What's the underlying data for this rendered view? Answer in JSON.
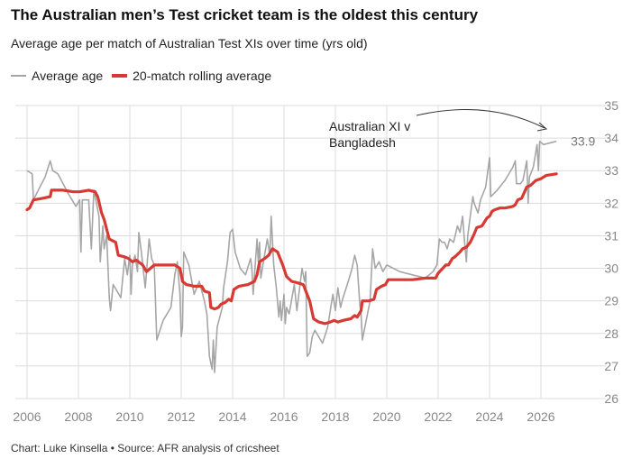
{
  "title": "The Australian men’s Test cricket team is the oldest this century",
  "subtitle": "Average age per match of Australian Test XIs over time (yrs old)",
  "legend": {
    "avg_label": "Average age",
    "roll_label": "20-match rolling average",
    "avg_color": "#a6a6a6",
    "roll_color": "#d63a33"
  },
  "annotation": {
    "text": "Australian XI v Bangladesh",
    "value_label": "33.9"
  },
  "footer": "Chart: Luke Kinsella • Source: AFR analysis of cricsheet",
  "chart_data": {
    "type": "line",
    "xlim": [
      2006,
      2027
    ],
    "ylim": [
      26,
      35
    ],
    "x_ticks": [
      2006,
      2008,
      2010,
      2012,
      2014,
      2016,
      2018,
      2020,
      2022,
      2024,
      2026
    ],
    "y_ticks": [
      26,
      27,
      28,
      29,
      30,
      31,
      32,
      33,
      34,
      35
    ],
    "grid": true,
    "legend_position": "top-left",
    "series": [
      {
        "name": "Average age",
        "points": [
          [
            2006.0,
            33.0
          ],
          [
            2006.2,
            32.9
          ],
          [
            2006.25,
            32.1
          ],
          [
            2006.5,
            32.5
          ],
          [
            2006.7,
            32.8
          ],
          [
            2006.9,
            33.3
          ],
          [
            2007.0,
            33.0
          ],
          [
            2007.2,
            32.9
          ],
          [
            2007.6,
            32.3
          ],
          [
            2007.9,
            31.9
          ],
          [
            2008.05,
            32.1
          ],
          [
            2008.1,
            30.5
          ],
          [
            2008.15,
            32.1
          ],
          [
            2008.4,
            32.1
          ],
          [
            2008.5,
            30.6
          ],
          [
            2008.6,
            32.4
          ],
          [
            2008.8,
            31.6
          ],
          [
            2008.85,
            30.2
          ],
          [
            2008.95,
            31.3
          ],
          [
            2009.0,
            30.6
          ],
          [
            2009.1,
            31.0
          ],
          [
            2009.2,
            29.1
          ],
          [
            2009.25,
            28.7
          ],
          [
            2009.35,
            29.5
          ],
          [
            2009.5,
            29.3
          ],
          [
            2009.65,
            29.1
          ],
          [
            2009.8,
            30.3
          ],
          [
            2009.9,
            29.8
          ],
          [
            2010.0,
            30.4
          ],
          [
            2010.05,
            29.2
          ],
          [
            2010.1,
            30.1
          ],
          [
            2010.2,
            30.4
          ],
          [
            2010.3,
            29.9
          ],
          [
            2010.35,
            31.1
          ],
          [
            2010.45,
            30.5
          ],
          [
            2010.6,
            29.4
          ],
          [
            2010.75,
            30.9
          ],
          [
            2010.85,
            30.3
          ],
          [
            2010.95,
            30.1
          ],
          [
            2011.05,
            27.8
          ],
          [
            2011.3,
            28.4
          ],
          [
            2011.6,
            28.8
          ],
          [
            2011.75,
            29.8
          ],
          [
            2011.85,
            30.2
          ],
          [
            2011.95,
            29.2
          ],
          [
            2012.0,
            27.9
          ],
          [
            2012.05,
            28.2
          ],
          [
            2012.1,
            30.5
          ],
          [
            2012.3,
            30.1
          ],
          [
            2012.5,
            29.2
          ],
          [
            2012.7,
            29.6
          ],
          [
            2012.9,
            29.0
          ],
          [
            2013.0,
            28.6
          ],
          [
            2013.1,
            27.3
          ],
          [
            2013.2,
            26.9
          ],
          [
            2013.25,
            27.8
          ],
          [
            2013.3,
            26.8
          ],
          [
            2013.4,
            28.2
          ],
          [
            2013.6,
            28.8
          ],
          [
            2013.65,
            29.4
          ],
          [
            2013.8,
            30.2
          ],
          [
            2013.9,
            31.1
          ],
          [
            2014.0,
            31.2
          ],
          [
            2014.1,
            30.5
          ],
          [
            2014.3,
            30.0
          ],
          [
            2014.5,
            29.8
          ],
          [
            2014.7,
            30.3
          ],
          [
            2014.75,
            30.0
          ],
          [
            2014.8,
            29.2
          ],
          [
            2014.95,
            30.9
          ],
          [
            2015.0,
            30.2
          ],
          [
            2015.05,
            30.8
          ],
          [
            2015.1,
            29.7
          ],
          [
            2015.2,
            30.2
          ],
          [
            2015.35,
            30.9
          ],
          [
            2015.45,
            30.4
          ],
          [
            2015.5,
            31.6
          ],
          [
            2015.6,
            30.1
          ],
          [
            2015.7,
            29.4
          ],
          [
            2015.8,
            28.5
          ],
          [
            2015.85,
            29.0
          ],
          [
            2015.9,
            28.4
          ],
          [
            2016.0,
            29.2
          ],
          [
            2016.05,
            28.3
          ],
          [
            2016.1,
            28.8
          ],
          [
            2016.2,
            28.6
          ],
          [
            2016.4,
            29.5
          ],
          [
            2016.5,
            28.7
          ],
          [
            2016.7,
            30.0
          ],
          [
            2016.8,
            29.6
          ],
          [
            2016.85,
            29.9
          ],
          [
            2016.9,
            27.3
          ],
          [
            2017.0,
            27.4
          ],
          [
            2017.1,
            27.9
          ],
          [
            2017.2,
            28.1
          ],
          [
            2017.5,
            27.7
          ],
          [
            2017.7,
            28.2
          ],
          [
            2017.8,
            28.7
          ],
          [
            2017.9,
            29.2
          ],
          [
            2018.0,
            28.7
          ],
          [
            2018.1,
            29.4
          ],
          [
            2018.2,
            28.8
          ],
          [
            2018.3,
            29.1
          ],
          [
            2018.5,
            29.6
          ],
          [
            2018.65,
            30.0
          ],
          [
            2018.75,
            30.4
          ],
          [
            2018.85,
            30.1
          ],
          [
            2018.95,
            28.9
          ],
          [
            2019.0,
            28.6
          ],
          [
            2019.05,
            27.8
          ],
          [
            2019.2,
            28.4
          ],
          [
            2019.35,
            29.0
          ],
          [
            2019.45,
            30.6
          ],
          [
            2019.55,
            30.0
          ],
          [
            2019.7,
            30.2
          ],
          [
            2019.85,
            29.9
          ],
          [
            2020.0,
            30.1
          ],
          [
            2020.5,
            29.9
          ],
          [
            2021.0,
            29.8
          ],
          [
            2021.5,
            29.7
          ],
          [
            2021.8,
            29.9
          ],
          [
            2021.95,
            30.1
          ],
          [
            2022.05,
            30.9
          ],
          [
            2022.15,
            30.8
          ],
          [
            2022.25,
            30.8
          ],
          [
            2022.35,
            30.6
          ],
          [
            2022.45,
            30.9
          ],
          [
            2022.6,
            30.8
          ],
          [
            2022.75,
            31.3
          ],
          [
            2022.85,
            31.1
          ],
          [
            2022.95,
            31.6
          ],
          [
            2023.05,
            30.6
          ],
          [
            2023.1,
            30.2
          ],
          [
            2023.15,
            31.0
          ],
          [
            2023.25,
            31.6
          ],
          [
            2023.35,
            32.2
          ],
          [
            2023.4,
            32.0
          ],
          [
            2023.45,
            31.9
          ],
          [
            2023.55,
            31.7
          ],
          [
            2023.65,
            32.1
          ],
          [
            2023.75,
            32.3
          ],
          [
            2023.85,
            32.5
          ],
          [
            2024.0,
            33.4
          ],
          [
            2024.05,
            32.2
          ],
          [
            2024.3,
            32.4
          ],
          [
            2024.6,
            32.7
          ],
          [
            2024.9,
            33.1
          ],
          [
            2025.0,
            33.3
          ],
          [
            2025.05,
            32.6
          ],
          [
            2025.2,
            32.6
          ],
          [
            2025.3,
            32.7
          ],
          [
            2025.45,
            33.3
          ],
          [
            2025.5,
            32.0
          ],
          [
            2025.55,
            32.8
          ],
          [
            2025.7,
            33.1
          ],
          [
            2025.85,
            33.8
          ],
          [
            2025.9,
            33.0
          ],
          [
            2025.95,
            33.9
          ],
          [
            2026.1,
            33.8
          ],
          [
            2026.6,
            33.9
          ]
        ]
      },
      {
        "name": "20-match rolling average",
        "points": [
          [
            2006.0,
            31.8
          ],
          [
            2006.1,
            31.85
          ],
          [
            2006.25,
            32.1
          ],
          [
            2006.6,
            32.15
          ],
          [
            2006.9,
            32.2
          ],
          [
            2006.95,
            32.4
          ],
          [
            2007.4,
            32.4
          ],
          [
            2007.8,
            32.35
          ],
          [
            2008.05,
            32.35
          ],
          [
            2008.4,
            32.4
          ],
          [
            2008.65,
            32.35
          ],
          [
            2008.75,
            32.2
          ],
          [
            2008.9,
            31.7
          ],
          [
            2009.0,
            31.5
          ],
          [
            2009.1,
            31.2
          ],
          [
            2009.2,
            30.9
          ],
          [
            2009.45,
            30.8
          ],
          [
            2009.55,
            30.4
          ],
          [
            2009.8,
            30.35
          ],
          [
            2009.95,
            30.3
          ],
          [
            2010.1,
            30.2
          ],
          [
            2010.25,
            30.25
          ],
          [
            2010.5,
            30.1
          ],
          [
            2010.65,
            29.9
          ],
          [
            2010.8,
            30.0
          ],
          [
            2010.95,
            30.1
          ],
          [
            2011.5,
            30.1
          ],
          [
            2011.75,
            30.1
          ],
          [
            2011.95,
            30.0
          ],
          [
            2012.05,
            29.6
          ],
          [
            2012.2,
            29.5
          ],
          [
            2012.5,
            29.45
          ],
          [
            2012.8,
            29.45
          ],
          [
            2012.9,
            29.3
          ],
          [
            2013.1,
            29.25
          ],
          [
            2013.15,
            28.8
          ],
          [
            2013.3,
            28.75
          ],
          [
            2013.45,
            28.8
          ],
          [
            2013.55,
            28.9
          ],
          [
            2013.7,
            28.95
          ],
          [
            2013.85,
            29.05
          ],
          [
            2013.95,
            29.0
          ],
          [
            2014.05,
            29.35
          ],
          [
            2014.25,
            29.45
          ],
          [
            2014.6,
            29.5
          ],
          [
            2014.85,
            29.6
          ],
          [
            2014.95,
            29.8
          ],
          [
            2015.05,
            30.2
          ],
          [
            2015.25,
            30.3
          ],
          [
            2015.4,
            30.4
          ],
          [
            2015.55,
            30.6
          ],
          [
            2015.75,
            30.5
          ],
          [
            2015.85,
            30.3
          ],
          [
            2015.95,
            30.1
          ],
          [
            2016.1,
            29.75
          ],
          [
            2016.3,
            29.6
          ],
          [
            2016.55,
            29.55
          ],
          [
            2016.75,
            29.5
          ],
          [
            2016.85,
            29.3
          ],
          [
            2017.0,
            29.0
          ],
          [
            2017.15,
            28.45
          ],
          [
            2017.35,
            28.35
          ],
          [
            2017.6,
            28.3
          ],
          [
            2017.8,
            28.35
          ],
          [
            2017.95,
            28.4
          ],
          [
            2018.1,
            28.35
          ],
          [
            2018.3,
            28.4
          ],
          [
            2018.6,
            28.45
          ],
          [
            2018.75,
            28.55
          ],
          [
            2018.85,
            28.5
          ],
          [
            2019.0,
            28.7
          ],
          [
            2019.05,
            29.0
          ],
          [
            2019.3,
            29.0
          ],
          [
            2019.5,
            29.05
          ],
          [
            2019.6,
            29.35
          ],
          [
            2019.8,
            29.45
          ],
          [
            2019.95,
            29.5
          ],
          [
            2020.05,
            29.65
          ],
          [
            2020.5,
            29.65
          ],
          [
            2021.0,
            29.65
          ],
          [
            2021.5,
            29.7
          ],
          [
            2021.9,
            29.7
          ],
          [
            2022.0,
            29.85
          ],
          [
            2022.3,
            30.1
          ],
          [
            2022.4,
            30.1
          ],
          [
            2022.55,
            30.3
          ],
          [
            2022.65,
            30.35
          ],
          [
            2022.85,
            30.5
          ],
          [
            2022.95,
            30.6
          ],
          [
            2023.1,
            30.65
          ],
          [
            2023.25,
            30.8
          ],
          [
            2023.4,
            31.05
          ],
          [
            2023.5,
            31.25
          ],
          [
            2023.7,
            31.3
          ],
          [
            2023.9,
            31.55
          ],
          [
            2024.0,
            31.6
          ],
          [
            2024.1,
            31.75
          ],
          [
            2024.2,
            31.8
          ],
          [
            2024.4,
            31.85
          ],
          [
            2024.6,
            31.85
          ],
          [
            2024.9,
            31.9
          ],
          [
            2025.0,
            31.95
          ],
          [
            2025.1,
            32.1
          ],
          [
            2025.25,
            32.15
          ],
          [
            2025.45,
            32.5
          ],
          [
            2025.6,
            32.55
          ],
          [
            2025.8,
            32.7
          ],
          [
            2026.0,
            32.75
          ],
          [
            2026.2,
            32.85
          ],
          [
            2026.6,
            32.9
          ]
        ]
      }
    ]
  }
}
